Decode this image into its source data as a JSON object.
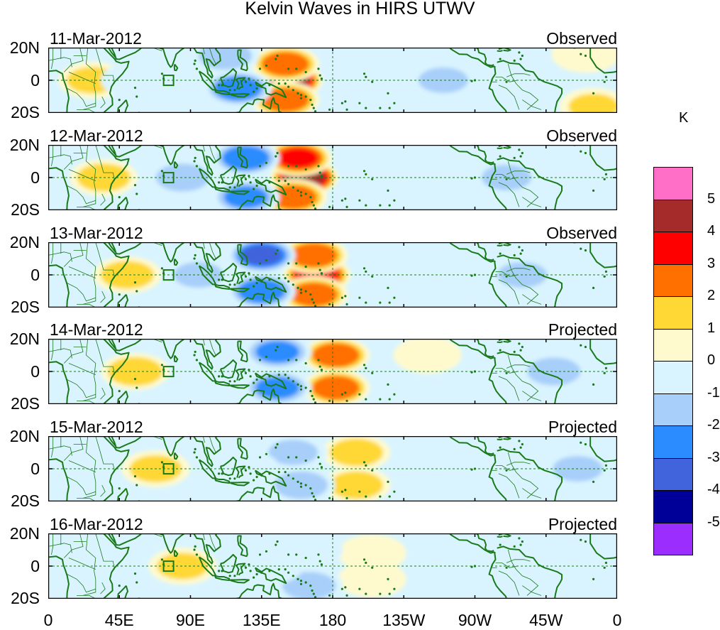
{
  "title": "Kelvin Waves in HIRS UTWV",
  "chart_data": {
    "type": "heatmap",
    "title": "Kelvin Waves in HIRS UTWV",
    "xlabel": "",
    "ylabel": "",
    "x_ticks": [
      "0",
      "45E",
      "90E",
      "135E",
      "180",
      "135W",
      "90W",
      "45W",
      "0"
    ],
    "x_range_deg": [
      0,
      360
    ],
    "y_ticks": [
      "20N",
      "0",
      "20S"
    ],
    "y_range_deg": [
      -20,
      20
    ],
    "colorbar": {
      "title": "K",
      "labels": [
        "5",
        "4",
        "3",
        "2",
        "1",
        "0",
        "-1",
        "-2",
        "-3",
        "-4",
        "-5"
      ],
      "colors": [
        "#ff6ec7",
        "#a52a2a",
        "#ff0000",
        "#ff7000",
        "#ffd835",
        "#fffacd",
        "#d9f4ff",
        "#a8cffa",
        "#2a8cff",
        "#4163dc",
        "#000099",
        "#9b2eff"
      ]
    },
    "panels": [
      {
        "date": "11-Mar-2012",
        "kind": "Observed",
        "anomalies": [
          {
            "lon": 152,
            "lat": 0,
            "value": 5.5
          },
          {
            "lon": 150,
            "lat": 10,
            "value": 3.5
          },
          {
            "lon": 150,
            "lat": -12,
            "value": 3.5
          },
          {
            "lon": 28,
            "lat": 0,
            "value": 2.2
          },
          {
            "lon": 120,
            "lat": -5,
            "value": -3.5
          },
          {
            "lon": 112,
            "lat": 15,
            "value": -2.5
          },
          {
            "lon": 55,
            "lat": 0,
            "value": -1.5
          },
          {
            "lon": 210,
            "lat": 2,
            "value": -1.5
          },
          {
            "lon": 250,
            "lat": 0,
            "value": -2
          },
          {
            "lon": 345,
            "lat": -16,
            "value": 2
          },
          {
            "lon": 340,
            "lat": 16,
            "value": 1.5
          }
        ]
      },
      {
        "date": "12-Mar-2012",
        "kind": "Observed",
        "anomalies": [
          {
            "lon": 162,
            "lat": 0,
            "value": 5.5
          },
          {
            "lon": 158,
            "lat": 12,
            "value": 4
          },
          {
            "lon": 155,
            "lat": -12,
            "value": 3.5
          },
          {
            "lon": 35,
            "lat": 0,
            "value": 2.5
          },
          {
            "lon": 125,
            "lat": 12,
            "value": -3.5
          },
          {
            "lon": 125,
            "lat": -12,
            "value": -3
          },
          {
            "lon": 85,
            "lat": 0,
            "value": -2.5
          },
          {
            "lon": 225,
            "lat": -5,
            "value": -1.5
          },
          {
            "lon": 290,
            "lat": 0,
            "value": -2
          }
        ]
      },
      {
        "date": "13-Mar-2012",
        "kind": "Observed",
        "anomalies": [
          {
            "lon": 170,
            "lat": 0,
            "value": 4.5
          },
          {
            "lon": 168,
            "lat": 12,
            "value": 3.5
          },
          {
            "lon": 168,
            "lat": -12,
            "value": 3.5
          },
          {
            "lon": 50,
            "lat": 0,
            "value": 2.5
          },
          {
            "lon": 135,
            "lat": 12,
            "value": -4
          },
          {
            "lon": 135,
            "lat": -10,
            "value": -3.5
          },
          {
            "lon": 95,
            "lat": 0,
            "value": -2
          },
          {
            "lon": 300,
            "lat": 0,
            "value": -2
          },
          {
            "lon": 230,
            "lat": 0,
            "value": -1.5
          }
        ]
      },
      {
        "date": "14-Mar-2012",
        "kind": "Projected",
        "anomalies": [
          {
            "lon": 182,
            "lat": 10,
            "value": 3.5
          },
          {
            "lon": 182,
            "lat": -10,
            "value": 3.5
          },
          {
            "lon": 55,
            "lat": 0,
            "value": 2.8
          },
          {
            "lon": 145,
            "lat": 12,
            "value": -3
          },
          {
            "lon": 145,
            "lat": -10,
            "value": -3
          },
          {
            "lon": 110,
            "lat": 0,
            "value": -1.5
          },
          {
            "lon": 320,
            "lat": 0,
            "value": -2.5
          },
          {
            "lon": 240,
            "lat": 10,
            "value": 1.2
          }
        ]
      },
      {
        "date": "15-Mar-2012",
        "kind": "Projected",
        "anomalies": [
          {
            "lon": 195,
            "lat": 10,
            "value": 2.5
          },
          {
            "lon": 195,
            "lat": -10,
            "value": 2.5
          },
          {
            "lon": 68,
            "lat": 0,
            "value": 2.3
          },
          {
            "lon": 155,
            "lat": 10,
            "value": -2
          },
          {
            "lon": 160,
            "lat": -10,
            "value": -2.5
          },
          {
            "lon": 125,
            "lat": 0,
            "value": -1.5
          },
          {
            "lon": 335,
            "lat": 0,
            "value": -2
          }
        ]
      },
      {
        "date": "16-Mar-2012",
        "kind": "Projected",
        "anomalies": [
          {
            "lon": 205,
            "lat": 8,
            "value": 1.8
          },
          {
            "lon": 205,
            "lat": -8,
            "value": 1.5
          },
          {
            "lon": 85,
            "lat": 0,
            "value": 2.2
          },
          {
            "lon": 165,
            "lat": 10,
            "value": -1.5
          },
          {
            "lon": 165,
            "lat": -12,
            "value": -2.5
          },
          {
            "lon": 140,
            "lat": 0,
            "value": -1.2
          }
        ]
      }
    ]
  }
}
